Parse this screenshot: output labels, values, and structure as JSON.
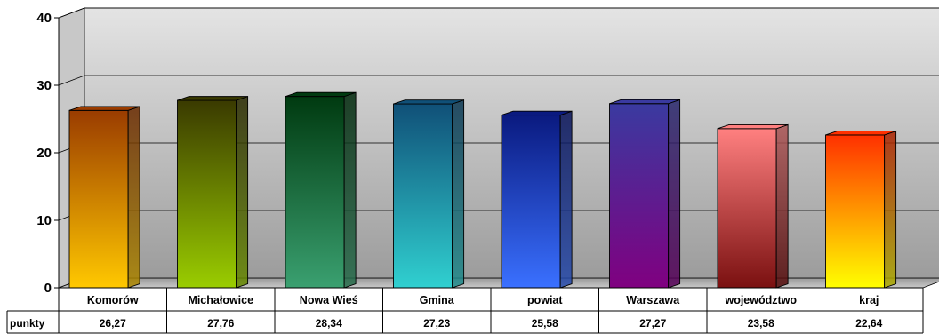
{
  "chart_data": {
    "type": "bar",
    "title": "",
    "xlabel": "",
    "ylabel": "",
    "ylim": [
      0,
      40
    ],
    "yticks": [
      0,
      10,
      20,
      30,
      40
    ],
    "grid": true,
    "categories": [
      "Komorów",
      "Michałowice",
      "Nowa Wieś",
      "Gmina",
      "powiat",
      "Warszawa",
      "województwo",
      "kraj"
    ],
    "series": [
      {
        "name": "punkty",
        "values": [
          26.27,
          27.76,
          28.34,
          27.23,
          25.58,
          27.27,
          23.58,
          22.64
        ],
        "value_labels": [
          "26,27",
          "27,76",
          "28,34",
          "27,23",
          "25,58",
          "27,27",
          "23,58",
          "22,64"
        ]
      }
    ],
    "bar_colors": [
      {
        "top": "#9a3c00",
        "bottom": "#ffc800"
      },
      {
        "top": "#3a3a00",
        "bottom": "#9acd00"
      },
      {
        "top": "#003a10",
        "bottom": "#3aa070"
      },
      {
        "top": "#105078",
        "bottom": "#30d0d0"
      },
      {
        "top": "#0a1a80",
        "bottom": "#3a70ff"
      },
      {
        "top": "#3a3aa0",
        "bottom": "#800080"
      },
      {
        "top": "#ff8080",
        "bottom": "#7a1010"
      },
      {
        "top": "#ff3000",
        "bottom": "#ffff00"
      }
    ],
    "data_table": true
  }
}
